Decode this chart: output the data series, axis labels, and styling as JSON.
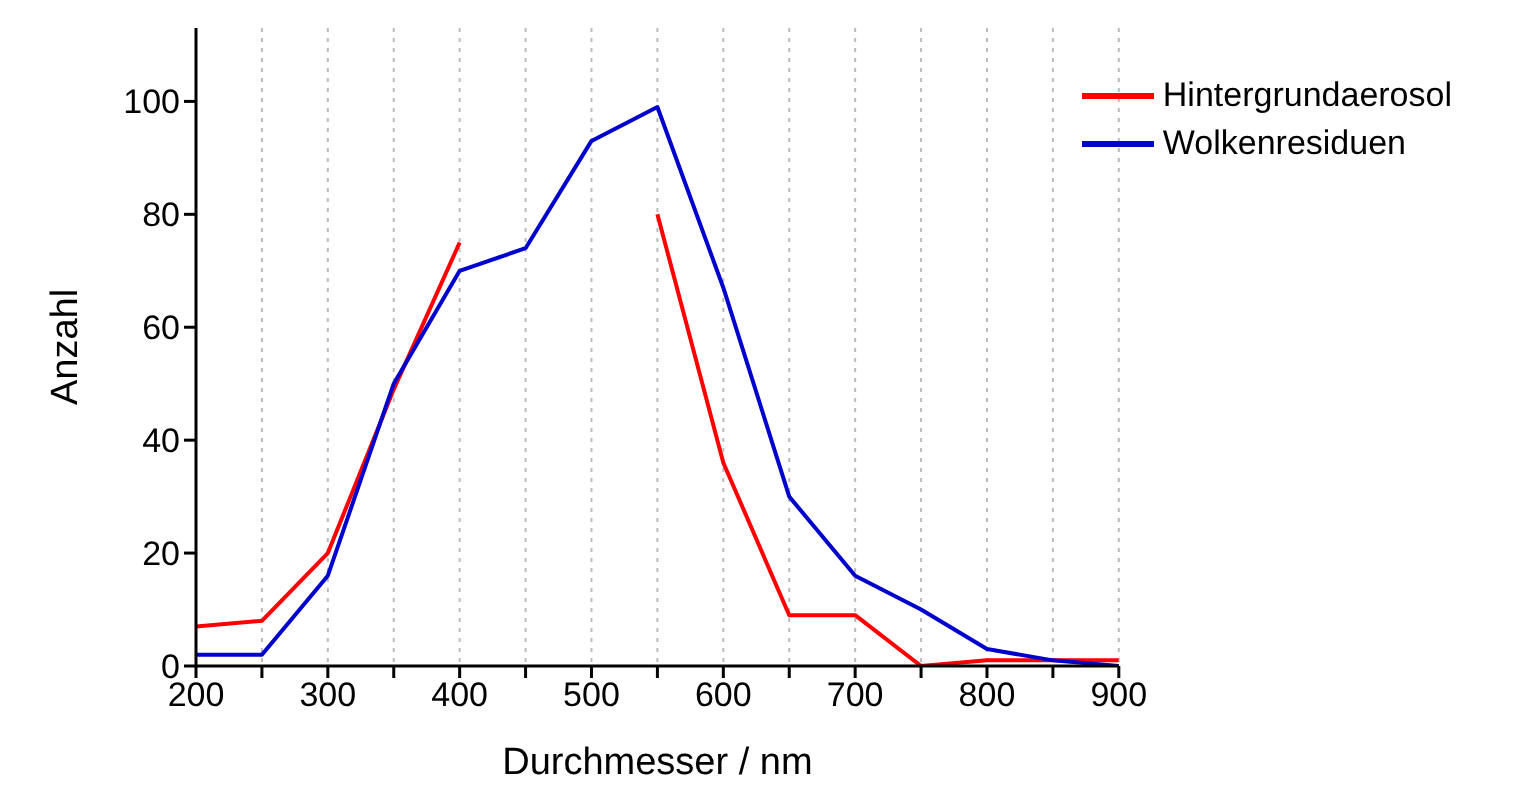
{
  "chart_data": {
    "type": "line",
    "xlabel": "Durchmesser / nm",
    "ylabel": "Anzahl",
    "x": [
      200,
      250,
      300,
      350,
      400,
      450,
      500,
      550,
      600,
      650,
      700,
      750,
      800,
      850,
      900
    ],
    "series": [
      {
        "name": "Hintergrundaerosol",
        "color": "#ff0000",
        "values": [
          7,
          8,
          20,
          49,
          75,
          null,
          null,
          80,
          36,
          9,
          9,
          0,
          1,
          1,
          1
        ]
      },
      {
        "name": "Wolkenresiduen",
        "color": "#0000cc",
        "values": [
          2,
          2,
          16,
          50,
          70,
          74,
          93,
          99,
          67,
          30,
          16,
          10,
          3,
          1,
          0
        ]
      }
    ],
    "xlim": [
      200,
      900
    ],
    "xticks": [
      200,
      {
        "value": 250,
        "label": null
      },
      300,
      {
        "value": 350,
        "label": null
      },
      400,
      {
        "value": 450,
        "label": null
      },
      500,
      {
        "value": 550,
        "label": null
      },
      600,
      {
        "value": 650,
        "label": null
      },
      700,
      {
        "value": 750,
        "label": null
      },
      800,
      {
        "value": 850,
        "label": null
      },
      900
    ],
    "ylim": [
      0,
      113
    ],
    "yticks": [
      0,
      20,
      40,
      60,
      80,
      100
    ],
    "grid": "x",
    "legend": "top right",
    "marker": "none",
    "line_style": "solid"
  }
}
